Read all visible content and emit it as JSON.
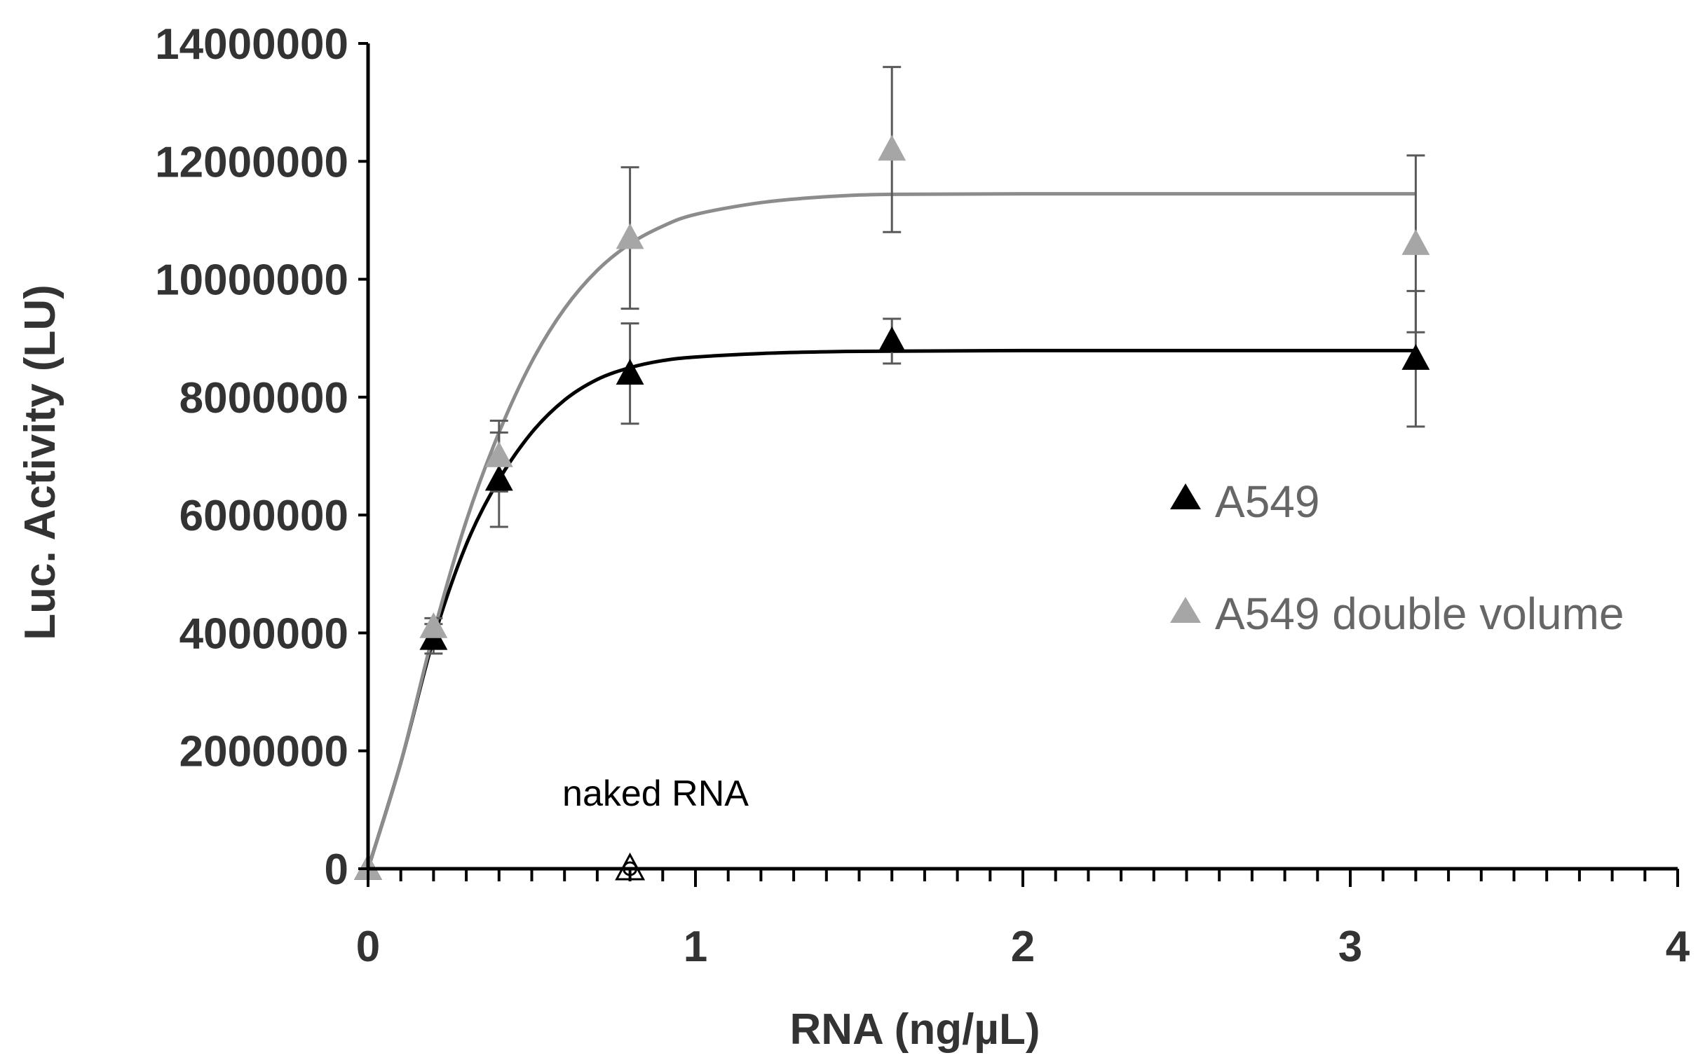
{
  "chart_data": {
    "type": "scatter",
    "xlabel": "RNA (ng/µL)",
    "ylabel": "Luc. Activity (LU)",
    "xlim": [
      0,
      4
    ],
    "ylim": [
      0,
      14000000
    ],
    "x_ticks": [
      "0",
      "1",
      "2",
      "3",
      "4"
    ],
    "y_ticks": [
      "0",
      "2000000",
      "4000000",
      "6000000",
      "8000000",
      "10000000",
      "12000000",
      "14000000"
    ],
    "grid": false,
    "legend_position": "right",
    "series": [
      {
        "name": "A549",
        "color": "#000000",
        "marker": "filled-triangle",
        "x": [
          0,
          0.2,
          0.4,
          0.8,
          1.6,
          3.2
        ],
        "y": [
          0,
          3900000,
          6600000,
          8400000,
          8950000,
          8650000
        ],
        "error": [
          0,
          250000,
          800000,
          850000,
          380000,
          1150000
        ],
        "fit": {
          "x": [
            0,
            0.1,
            0.2,
            0.3,
            0.4,
            0.5,
            0.6,
            0.7,
            0.8,
            0.9,
            1.0,
            1.2,
            1.4,
            1.6,
            2.0,
            2.5,
            3.2
          ],
          "y": [
            0,
            1800000,
            3900000,
            5500000,
            6600000,
            7400000,
            7950000,
            8300000,
            8500000,
            8620000,
            8680000,
            8740000,
            8770000,
            8780000,
            8790000,
            8790000,
            8790000
          ]
        }
      },
      {
        "name": "A549 double volume",
        "color": "#a6a6a6",
        "marker": "filled-triangle",
        "x": [
          0,
          0.2,
          0.4,
          0.8,
          1.6,
          3.2
        ],
        "y": [
          0,
          4100000,
          7000000,
          10700000,
          12200000,
          10600000
        ],
        "error": [
          0,
          150000,
          600000,
          1200000,
          1400000,
          1500000
        ],
        "fit": {
          "x": [
            0,
            0.1,
            0.2,
            0.3,
            0.4,
            0.5,
            0.6,
            0.7,
            0.8,
            0.9,
            1.0,
            1.2,
            1.4,
            1.6,
            2.0,
            2.5,
            3.2
          ],
          "y": [
            0,
            1800000,
            4000000,
            5900000,
            7400000,
            8600000,
            9500000,
            10150000,
            10600000,
            10900000,
            11100000,
            11300000,
            11400000,
            11440000,
            11450000,
            11450000,
            11450000
          ]
        }
      },
      {
        "name": "naked RNA",
        "color": "#000000",
        "marker": "open-triangle",
        "x": [
          0.8
        ],
        "y": [
          0
        ],
        "error": [
          0
        ]
      }
    ],
    "annotations": [
      {
        "text": "naked RNA",
        "x": 0.88,
        "y": 1300000
      }
    ]
  }
}
